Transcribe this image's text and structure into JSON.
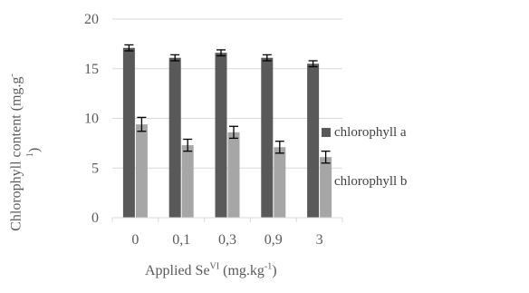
{
  "chart_data": {
    "type": "bar",
    "categories": [
      "0",
      "0,1",
      "0,3",
      "0,9",
      "3"
    ],
    "series": [
      {
        "name": "chlorophyll a",
        "values": [
          17.1,
          16.1,
          16.6,
          16.1,
          15.5
        ],
        "errors": [
          0.3,
          0.3,
          0.3,
          0.3,
          0.3
        ],
        "color": "#595959"
      },
      {
        "name": "chlorophyll b",
        "values": [
          9.4,
          7.3,
          8.6,
          7.1,
          6.1
        ],
        "errors": [
          0.7,
          0.6,
          0.6,
          0.6,
          0.6
        ],
        "color": "#a6a6a6"
      }
    ],
    "y_ticks": [
      "0",
      "5",
      "10",
      "15",
      "20"
    ],
    "ylim": [
      0,
      20
    ],
    "xlabel_text": "Applied Se",
    "xlabel_sup1": "VI",
    "xlabel_mid": " (mg.kg",
    "xlabel_sup2": "-1",
    "xlabel_end": ")",
    "ylabel_line1": "Chlorophyll content (mg.g",
    "ylabel_sup": "-",
    "ylabel_line2": "1",
    "ylabel_end": ")",
    "grid": true,
    "legend_position": "right"
  }
}
